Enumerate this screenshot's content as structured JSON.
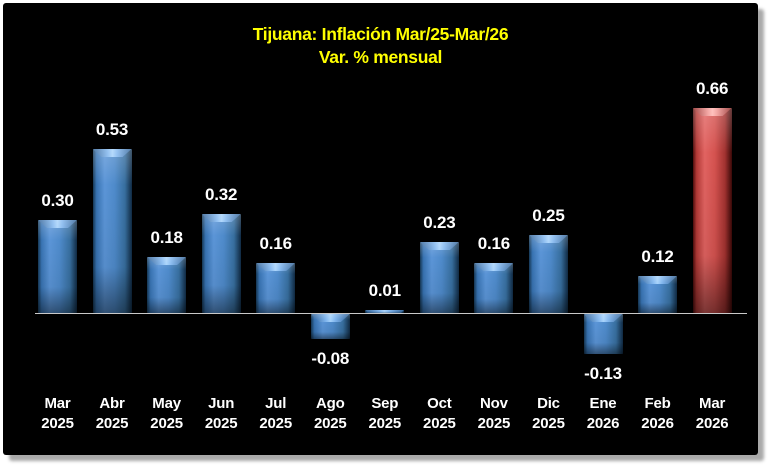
{
  "page": {
    "background_color": "#ffffff",
    "panel_background_color": "#000000",
    "panel_shadow_color": "#a9a9a9"
  },
  "chart_data": {
    "type": "bar",
    "title": "Tijuana: Inflación Mar/25-Mar/26",
    "subtitle": "Var. % mensual",
    "xlabel": "",
    "ylabel": "",
    "categories": [
      "Mar 2025",
      "Abr 2025",
      "May 2025",
      "Jun 2025",
      "Jul 2025",
      "Ago 2025",
      "Sep 2025",
      "Oct 2025",
      "Nov 2025",
      "Dic 2025",
      "Ene 2026",
      "Feb 2026",
      "Mar 2026"
    ],
    "values": [
      0.3,
      0.53,
      0.18,
      0.32,
      0.16,
      -0.08,
      0.01,
      0.23,
      0.16,
      0.25,
      -0.13,
      0.12,
      0.66
    ],
    "value_labels": [
      "0.30",
      "0.53",
      "0.18",
      "0.32",
      "0.16",
      "-0.08",
      "0.01",
      "0.23",
      "0.16",
      "0.25",
      "-0.13",
      "0.12",
      "0.66"
    ],
    "highlight_index": 12,
    "series_color": "#4e8aca",
    "highlight_color": "#d4524f",
    "title_color": "#ffff00",
    "label_color": "#ffffff",
    "axis_line_color": "#c9c9c9",
    "background_color": "#000000",
    "ylim": [
      -0.2,
      0.7
    ],
    "grid": false,
    "legend": false,
    "value_axis_hidden": true,
    "data_labels_shown": true
  }
}
